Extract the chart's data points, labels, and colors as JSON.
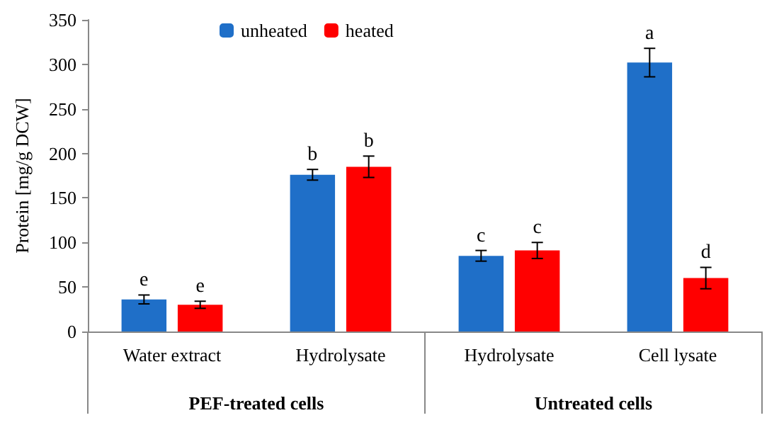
{
  "chart_data": {
    "type": "bar",
    "ylabel": "Protein [mg/g DCW]",
    "categories": [
      "Water extract",
      "Hydrolysate",
      "Hydrolysate",
      "Cell lysate"
    ],
    "series": [
      {
        "name": "unheated",
        "color": "#1f6fc8",
        "values": [
          36,
          176,
          85,
          302
        ],
        "errors": [
          5,
          6,
          6,
          16
        ],
        "value_labels": [
          "e",
          "b",
          "c",
          "a"
        ]
      },
      {
        "name": "heated",
        "color": "#ff0000",
        "values": [
          30,
          185,
          91,
          60
        ],
        "errors": [
          4,
          12,
          9,
          12
        ],
        "value_labels": [
          "e",
          "b",
          "c",
          "d"
        ]
      }
    ],
    "ylim": [
      0,
      350
    ],
    "yticks": [
      0,
      50,
      100,
      150,
      200,
      250,
      300,
      350
    ],
    "annotations": [
      "PEF-treated cells",
      "Untreated cells"
    ],
    "legend": "top left",
    "grid": false
  }
}
